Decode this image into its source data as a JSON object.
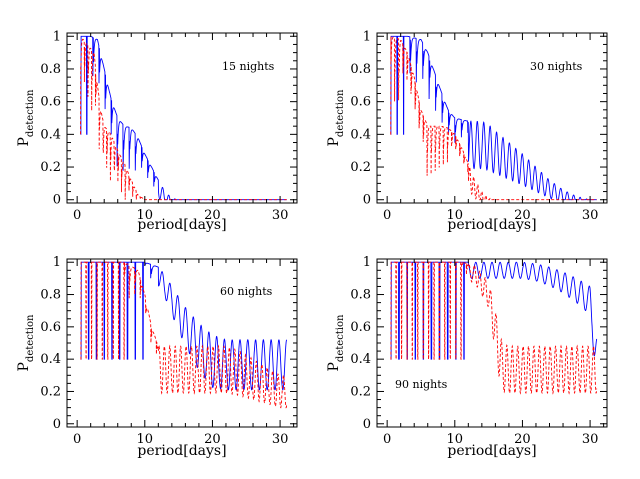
{
  "chart_data": [
    {
      "type": "line",
      "annotation": "15 nights",
      "xlabel": "period[days]",
      "ylabel_main": "P",
      "ylabel_sub": "detection",
      "xlim": [
        -1.5,
        32.5
      ],
      "ylim": [
        -0.02,
        1.02
      ],
      "xticks": [
        "0",
        "10",
        "20",
        "30"
      ],
      "yticks": [
        "0",
        "0.2",
        "0.4",
        "0.6",
        "0.8",
        "1"
      ],
      "series": [
        {
          "color": "#0000ff",
          "style": "solid",
          "x": [
            0.5,
            2,
            3,
            4,
            5,
            6,
            7,
            8,
            9,
            10,
            11,
            12,
            13,
            14,
            15,
            20,
            25,
            30,
            31
          ],
          "env": [
            1,
            1,
            0.98,
            0.8,
            0.62,
            0.5,
            0.45,
            0.44,
            0.38,
            0.28,
            0.2,
            0.12,
            0.05,
            0.01,
            0,
            0,
            0,
            0,
            0
          ],
          "period": 0.9
        },
        {
          "color": "#ff0000",
          "style": "dashed",
          "x": [
            0.5,
            1.5,
            2.5,
            3,
            3.5,
            4,
            5,
            6,
            7,
            8,
            9,
            10,
            15,
            20,
            25,
            30,
            31
          ],
          "env": [
            1,
            0.95,
            0.9,
            0.7,
            0.55,
            0.45,
            0.4,
            0.3,
            0.22,
            0.12,
            0.03,
            0,
            0,
            0,
            0,
            0,
            0
          ],
          "period": 0.55
        }
      ]
    },
    {
      "type": "line",
      "annotation": "30 nights",
      "xlabel": "period[days]",
      "ylabel_main": "P",
      "ylabel_sub": "detection",
      "xlim": [
        -1.5,
        32.5
      ],
      "ylim": [
        -0.02,
        1.02
      ],
      "xticks": [
        "0",
        "10",
        "20",
        "30"
      ],
      "yticks": [
        "0",
        "0.2",
        "0.4",
        "0.6",
        "0.8",
        "1"
      ],
      "series": [
        {
          "color": "#0000ff",
          "style": "solid",
          "x": [
            0.5,
            3,
            5,
            6,
            7,
            8,
            9,
            10,
            12,
            14,
            15,
            16,
            18,
            20,
            22,
            24,
            26,
            28,
            30,
            31
          ],
          "env": [
            1,
            1,
            0.98,
            0.9,
            0.78,
            0.66,
            0.55,
            0.5,
            0.48,
            0.48,
            0.46,
            0.42,
            0.35,
            0.28,
            0.2,
            0.12,
            0.06,
            0.02,
            0,
            0
          ],
          "period": 0.95
        },
        {
          "color": "#ff0000",
          "style": "dashed",
          "x": [
            0.5,
            2,
            3,
            4,
            5,
            6,
            7,
            8,
            9,
            10,
            11,
            12,
            13,
            14,
            15,
            16,
            20,
            25,
            30,
            31
          ],
          "env": [
            1,
            0.98,
            0.9,
            0.75,
            0.55,
            0.45,
            0.45,
            0.45,
            0.44,
            0.4,
            0.32,
            0.22,
            0.12,
            0.05,
            0.01,
            0,
            0,
            0,
            0,
            0
          ],
          "period": 0.6
        }
      ]
    },
    {
      "type": "line",
      "annotation": "60 nights",
      "xlabel": "period[days]",
      "ylabel_main": "P",
      "ylabel_sub": "detection",
      "xlim": [
        -1.5,
        32.5
      ],
      "ylim": [
        -0.02,
        1.02
      ],
      "xticks": [
        "0",
        "10",
        "20",
        "30"
      ],
      "yticks": [
        "0",
        "0.2",
        "0.4",
        "0.6",
        "0.8",
        "1"
      ],
      "series": [
        {
          "color": "#0000ff",
          "style": "solid",
          "x": [
            0.5,
            5,
            8,
            10,
            12,
            13,
            14,
            16,
            18,
            20,
            22,
            24,
            26,
            28,
            30,
            31
          ],
          "env": [
            1,
            1,
            1,
            1,
            0.97,
            0.92,
            0.85,
            0.72,
            0.62,
            0.55,
            0.52,
            0.52,
            0.52,
            0.52,
            0.52,
            0.52
          ],
          "period": 1.15
        },
        {
          "color": "#ff0000",
          "style": "dashed",
          "x": [
            0.5,
            4,
            7,
            9,
            10,
            11,
            12,
            14,
            16,
            18,
            20,
            22,
            24,
            26,
            28,
            30,
            31
          ],
          "env": [
            1,
            1,
            1,
            0.95,
            0.8,
            0.6,
            0.48,
            0.48,
            0.48,
            0.48,
            0.48,
            0.48,
            0.45,
            0.4,
            0.35,
            0.3,
            0.3
          ],
          "period": 0.8
        }
      ]
    },
    {
      "type": "line",
      "annotation": "90 nights",
      "xlabel": "period[days]",
      "ylabel_main": "P",
      "ylabel_sub": "detection",
      "xlim": [
        -1.5,
        32.5
      ],
      "ylim": [
        -0.02,
        1.02
      ],
      "xticks": [
        "0",
        "10",
        "20",
        "30"
      ],
      "yticks": [
        "0",
        "0.2",
        "0.4",
        "0.6",
        "0.8",
        "1"
      ],
      "series": [
        {
          "color": "#0000ff",
          "style": "solid",
          "x": [
            0.5,
            8,
            12,
            14,
            16,
            18,
            20,
            22,
            24,
            26,
            28,
            30,
            31
          ],
          "env": [
            1,
            1,
            1,
            1,
            1,
            1,
            1,
            0.99,
            0.97,
            0.94,
            0.9,
            0.85,
            0.55
          ],
          "period": 1.2
        },
        {
          "color": "#ff0000",
          "style": "dashed",
          "x": [
            0.5,
            8,
            11,
            13,
            15,
            16,
            17,
            18,
            20,
            24,
            28,
            31
          ],
          "env": [
            1,
            1,
            1,
            0.98,
            0.88,
            0.7,
            0.5,
            0.48,
            0.48,
            0.48,
            0.48,
            0.48
          ],
          "period": 0.8
        }
      ]
    }
  ]
}
